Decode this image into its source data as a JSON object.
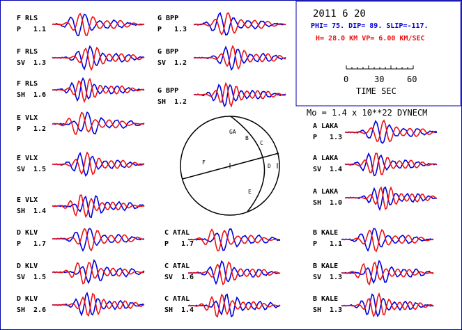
{
  "chart_data": {
    "type": "line",
    "colors": {
      "observed": "#0000dd",
      "synthetic": "#ee1111",
      "frame": "#0000aa",
      "ink": "#000000"
    },
    "header": {
      "date": "2011   6 20",
      "mechanism": "PHI=  75. DIP=  89. SLIP=-117.",
      "depth_velocity": "H= 28.0 KM  VP= 6.00 KM/SEC",
      "moment": "Mo =  1.4 x 10**22 DYNECM"
    },
    "time_scale": {
      "ticks": [
        "0",
        "30",
        "60"
      ],
      "label": "TIME  SEC"
    },
    "stations": [
      {
        "station": "F RLS",
        "component": "P",
        "amplitude": "1.1"
      },
      {
        "station": "F RLS",
        "component": "SV",
        "amplitude": "1.3"
      },
      {
        "station": "F RLS",
        "component": "SH",
        "amplitude": "1.6"
      },
      {
        "station": "E VLX",
        "component": "P",
        "amplitude": "1.2"
      },
      {
        "station": "E VLX",
        "component": "SV",
        "amplitude": "1.5"
      },
      {
        "station": "E VLX",
        "component": "SH",
        "amplitude": "1.4"
      },
      {
        "station": "D KLV",
        "component": "P",
        "amplitude": "1.7"
      },
      {
        "station": "D KLV",
        "component": "SV",
        "amplitude": "1.5"
      },
      {
        "station": "D KLV",
        "component": "SH",
        "amplitude": "2.6"
      },
      {
        "station": "G BPP",
        "component": "P",
        "amplitude": "1.3"
      },
      {
        "station": "G BPP",
        "component": "SV",
        "amplitude": "1.2"
      },
      {
        "station": "G BPP",
        "component": "SH",
        "amplitude": "1.2"
      },
      {
        "station": "C ATAL",
        "component": "P",
        "amplitude": "1.7"
      },
      {
        "station": "C ATAL",
        "component": "SV",
        "amplitude": "1.6"
      },
      {
        "station": "C ATAL",
        "component": "SH",
        "amplitude": "1.4"
      },
      {
        "station": "A LAKA",
        "component": "P",
        "amplitude": "1.3"
      },
      {
        "station": "A LAKA",
        "component": "SV",
        "amplitude": "1.4"
      },
      {
        "station": "A LAKA",
        "component": "SH",
        "amplitude": "1.0"
      },
      {
        "station": "B KALE",
        "component": "P",
        "amplitude": "1.1"
      },
      {
        "station": "B KALE",
        "component": "SV",
        "amplitude": "1.3"
      },
      {
        "station": "B KALE",
        "component": "SH",
        "amplitude": "1.3"
      }
    ],
    "focal_sphere_labels": [
      "GA",
      "B",
      "C",
      "D",
      "F",
      "E"
    ]
  }
}
